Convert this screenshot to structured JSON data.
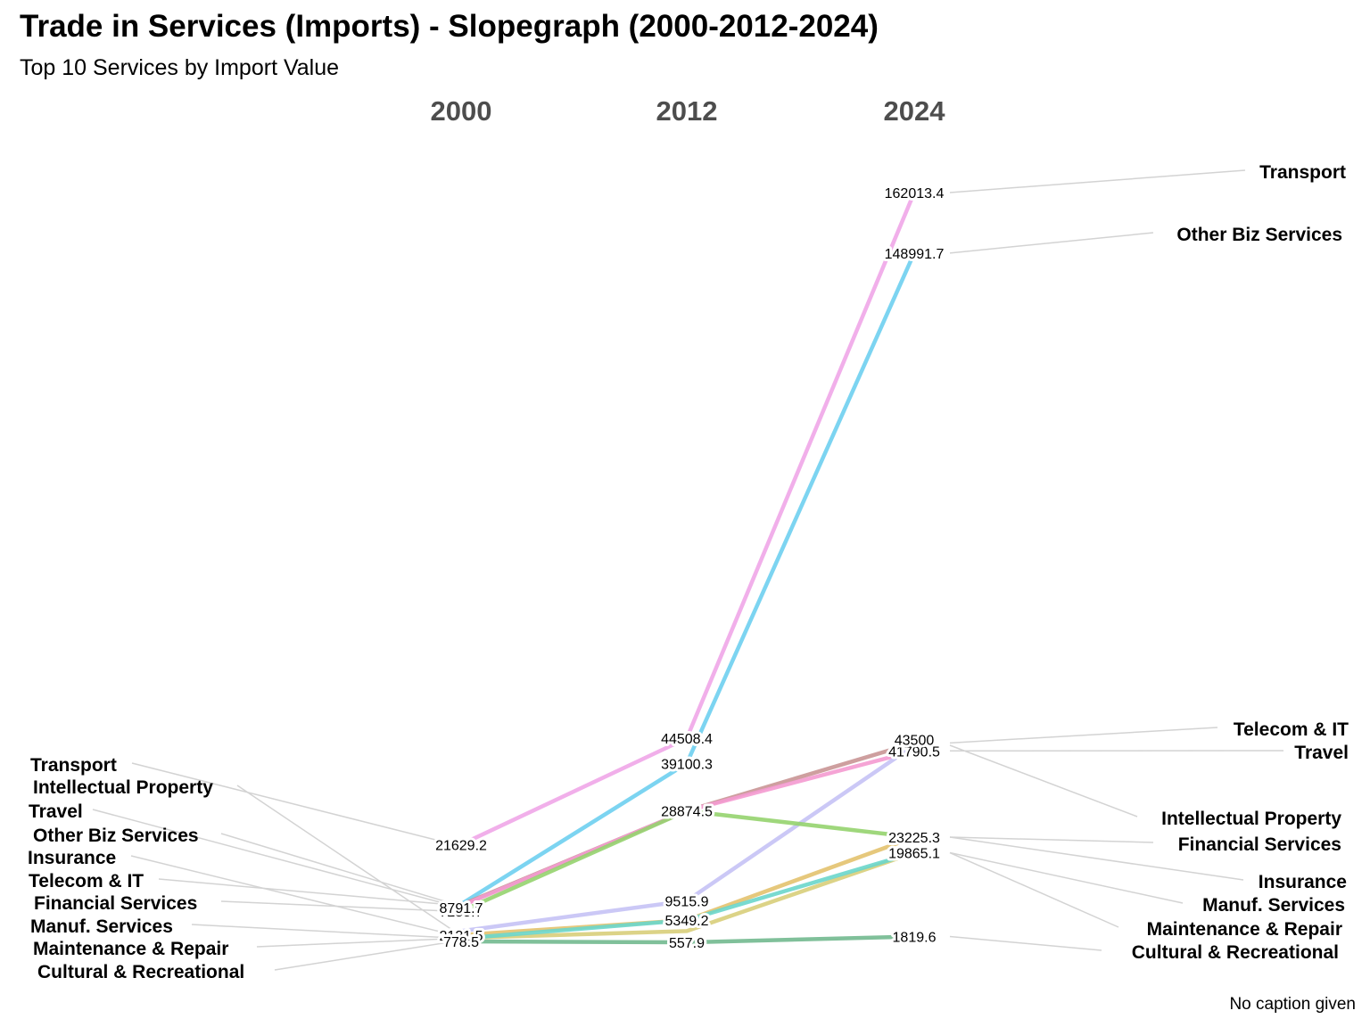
{
  "chart_data": {
    "type": "line",
    "title": "Trade in Services (Imports) - Slopegraph (2000-2012-2024)",
    "subtitle": "Top 10 Services by Import Value",
    "caption": "No caption given",
    "x": [
      "2000",
      "2012",
      "2024"
    ],
    "ylim": [
      0,
      165000
    ],
    "grid": false,
    "legend": "none",
    "series": [
      {
        "name": "Transport",
        "color": "#f0a6e8",
        "values": [
          21629.2,
          44508.4,
          162013.4
        ],
        "labels": [
          "21629.2",
          "44508.4",
          "162013.4"
        ]
      },
      {
        "name": "Other Biz Services",
        "color": "#6ecfef",
        "values": [
          8791.7,
          39100.3,
          148991.7
        ],
        "labels": [
          "",
          "39100.3",
          "148991.7"
        ]
      },
      {
        "name": "Telecom & IT",
        "color": "#c99595",
        "values": [
          8600,
          28874.5,
          43500
        ],
        "labels": [
          "",
          "",
          ""
        ]
      },
      {
        "name": "Travel",
        "color": "#f49ad0",
        "values": [
          8400,
          28874.5,
          41790.5
        ],
        "labels": [
          "",
          "28874.5",
          "41790.5"
        ]
      },
      {
        "name": "Intellectual Property",
        "color": "#c5c2f5",
        "values": [
          3000,
          9515.9,
          43000
        ],
        "labels": [
          "",
          "9515.9",
          ""
        ]
      },
      {
        "name": "Financial Services",
        "color": "#95d36e",
        "values": [
          7255.7,
          28874.5,
          23225.3
        ],
        "labels": [
          "7255.7",
          "",
          "23225.3"
        ]
      },
      {
        "name": "Insurance",
        "color": "#e3c26e",
        "values": [
          2131.5,
          5349.2,
          23225.3
        ],
        "labels": [
          "2131.5",
          "5349.2",
          ""
        ]
      },
      {
        "name": "Manuf. Services",
        "color": "#d8ce7a",
        "values": [
          1500,
          3000,
          19865.1
        ],
        "labels": [
          "",
          "",
          "19865.1"
        ]
      },
      {
        "name": "Maintenance & Repair",
        "color": "#6ad6cb",
        "values": [
          1400,
          5349.2,
          19865.1
        ],
        "labels": [
          "",
          "",
          ""
        ]
      },
      {
        "name": "Cultural & Recreational",
        "color": "#72b98f",
        "values": [
          778.5,
          557.9,
          1819.6
        ],
        "labels": [
          "778.5",
          "557.9",
          "1819.6"
        ]
      }
    ],
    "left_label_order": [
      "Transport",
      "Intellectual Property",
      "Travel",
      "Other Biz Services",
      "Insurance",
      "Telecom & IT",
      "Financial Services",
      "Manuf. Services",
      "Maintenance & Repair",
      "Cultural & Recreational"
    ],
    "right_label_order": [
      "Transport",
      "Other Biz Services",
      "Telecom & IT",
      "Travel",
      "Intellectual Property",
      "Financial Services",
      "Insurance",
      "Manuf. Services",
      "Maintenance & Repair",
      "Cultural & Recreational"
    ],
    "extra_value_labels": [
      "8791.7",
      "43500"
    ]
  }
}
